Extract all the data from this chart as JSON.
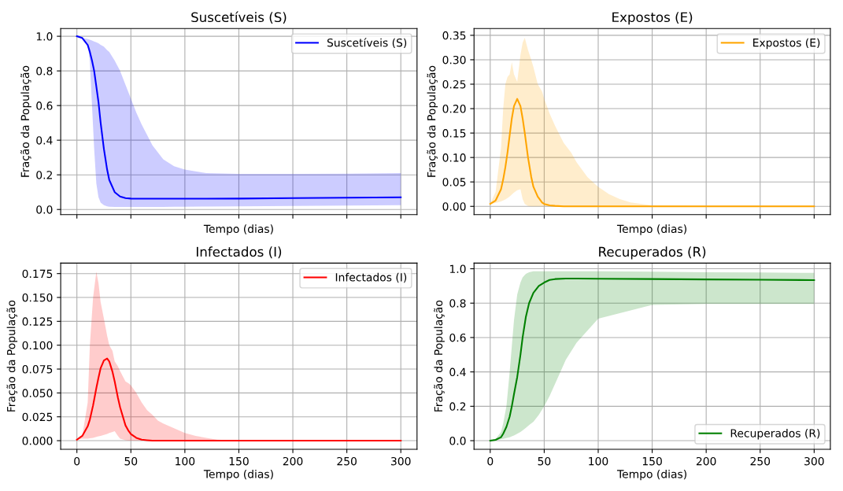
{
  "chart_data": [
    {
      "type": "line",
      "title": "Suscetíveis (S)",
      "xlabel": "Tempo (dias)",
      "ylabel": "Fração da População",
      "xlim": [
        -15,
        315
      ],
      "xticks": [
        0,
        50,
        100,
        150,
        200,
        250,
        300
      ],
      "ylim": [
        -0.03,
        1.045
      ],
      "yticks": [
        {
          "value": 0,
          "label": "0.0"
        },
        {
          "value": 0.2,
          "label": "0.2"
        },
        {
          "value": 0.4,
          "label": "0.4"
        },
        {
          "value": 0.6,
          "label": "0.6"
        },
        {
          "value": 0.8,
          "label": "0.8"
        },
        {
          "value": 1,
          "label": "1.0"
        }
      ],
      "tick_labels": "y",
      "grid": true,
      "legend": "top right",
      "series": [
        {
          "name": "Suscetíveis (S)",
          "color": "#0000ff",
          "x": [
            0,
            5,
            10,
            12,
            14,
            16,
            18,
            20,
            22,
            25,
            28,
            30,
            35,
            40,
            45,
            50,
            55,
            60,
            70,
            80,
            90,
            100,
            120,
            150,
            200,
            250,
            300
          ],
          "values": [
            1.0,
            0.99,
            0.95,
            0.91,
            0.86,
            0.8,
            0.71,
            0.62,
            0.5,
            0.35,
            0.23,
            0.17,
            0.1,
            0.075,
            0.066,
            0.063,
            0.062,
            0.062,
            0.062,
            0.062,
            0.062,
            0.062,
            0.062,
            0.063,
            0.066,
            0.068,
            0.07
          ],
          "upper": [
            1.0,
            0.99,
            0.985,
            0.98,
            0.975,
            0.97,
            0.965,
            0.96,
            0.95,
            0.94,
            0.92,
            0.91,
            0.86,
            0.8,
            0.72,
            0.64,
            0.56,
            0.49,
            0.37,
            0.29,
            0.25,
            0.23,
            0.21,
            0.205,
            0.205,
            0.207,
            0.21
          ],
          "lower": [
            1.0,
            0.99,
            0.96,
            0.85,
            0.6,
            0.35,
            0.15,
            0.07,
            0.04,
            0.025,
            0.018,
            0.016,
            0.015,
            0.015,
            0.015,
            0.015,
            0.015,
            0.015,
            0.015,
            0.015,
            0.016,
            0.016,
            0.017,
            0.018,
            0.02,
            0.022,
            0.025
          ]
        }
      ]
    },
    {
      "type": "line",
      "title": "Expostos (E)",
      "xlabel": "Tempo (dias)",
      "ylabel": "Fração da População",
      "xlim": [
        -15,
        315
      ],
      "xticks": [
        0,
        50,
        100,
        150,
        200,
        250,
        300
      ],
      "ylim": [
        -0.017,
        0.364
      ],
      "yticks": [
        {
          "value": 0,
          "label": "0.00"
        },
        {
          "value": 0.05,
          "label": "0.05"
        },
        {
          "value": 0.1,
          "label": "0.10"
        },
        {
          "value": 0.15,
          "label": "0.15"
        },
        {
          "value": 0.2,
          "label": "0.20"
        },
        {
          "value": 0.25,
          "label": "0.25"
        },
        {
          "value": 0.3,
          "label": "0.30"
        },
        {
          "value": 0.35,
          "label": "0.35"
        }
      ],
      "tick_labels": "y",
      "grid": true,
      "legend": "top right",
      "series": [
        {
          "name": "Expostos (E)",
          "color": "#ffa500",
          "x": [
            0,
            5,
            10,
            12,
            14,
            16,
            18,
            20,
            22,
            25,
            28,
            30,
            32,
            35,
            38,
            40,
            44,
            48,
            50,
            55,
            60,
            68,
            75,
            80,
            90,
            100,
            110,
            120,
            130,
            150,
            200,
            250,
            300
          ],
          "values": [
            0.005,
            0.012,
            0.035,
            0.055,
            0.08,
            0.11,
            0.145,
            0.18,
            0.205,
            0.22,
            0.205,
            0.18,
            0.15,
            0.1,
            0.06,
            0.04,
            0.02,
            0.008,
            0.005,
            0.002,
            0.001,
            0,
            0,
            0,
            0,
            0,
            0,
            0,
            0,
            0,
            0,
            0,
            0
          ],
          "upper": [
            0.005,
            0.03,
            0.12,
            0.2,
            0.25,
            0.265,
            0.27,
            0.295,
            0.27,
            0.255,
            0.31,
            0.335,
            0.345,
            0.32,
            0.3,
            0.285,
            0.25,
            0.235,
            0.22,
            0.19,
            0.165,
            0.13,
            0.11,
            0.09,
            0.06,
            0.04,
            0.025,
            0.015,
            0.008,
            0.002,
            0,
            0,
            0
          ],
          "lower": [
            0.005,
            0.007,
            0.01,
            0.012,
            0.014,
            0.017,
            0.02,
            0.024,
            0.028,
            0.033,
            0.035,
            0.015,
            0.005,
            0.001,
            0,
            0,
            0,
            0,
            0,
            0,
            0,
            0,
            0,
            0,
            0,
            0,
            0,
            0,
            0,
            0,
            0,
            0,
            0
          ]
        }
      ]
    },
    {
      "type": "line",
      "title": "Infectados (I)",
      "xlabel": "Tempo (dias)",
      "ylabel": "Fração da População",
      "xlim": [
        -15,
        315
      ],
      "xticks": [
        0,
        50,
        100,
        150,
        200,
        250,
        300
      ],
      "ylim": [
        -0.009,
        0.186
      ],
      "yticks": [
        {
          "value": 0,
          "label": "0.000"
        },
        {
          "value": 0.025,
          "label": "0.025"
        },
        {
          "value": 0.05,
          "label": "0.050"
        },
        {
          "value": 0.075,
          "label": "0.075"
        },
        {
          "value": 0.1,
          "label": "0.100"
        },
        {
          "value": 0.125,
          "label": "0.125"
        },
        {
          "value": 0.15,
          "label": "0.150"
        },
        {
          "value": 0.175,
          "label": "0.175"
        }
      ],
      "grid": true,
      "legend": "top right",
      "series": [
        {
          "name": "Infectados (I)",
          "color": "#ff0000",
          "x": [
            0,
            5,
            10,
            12,
            15,
            18,
            20,
            22,
            25,
            28,
            30,
            33,
            35,
            38,
            40,
            45,
            48,
            50,
            55,
            60,
            65,
            70,
            75,
            80,
            90,
            100,
            110,
            120,
            130,
            150,
            200,
            250,
            300
          ],
          "values": [
            0.001,
            0.005,
            0.015,
            0.022,
            0.037,
            0.055,
            0.066,
            0.076,
            0.084,
            0.086,
            0.083,
            0.072,
            0.062,
            0.045,
            0.035,
            0.016,
            0.01,
            0.007,
            0.003,
            0.001,
            0.0005,
            0,
            0,
            0,
            0,
            0,
            0,
            0,
            0,
            0,
            0,
            0,
            0
          ],
          "upper": [
            0.001,
            0.005,
            0.04,
            0.1,
            0.15,
            0.177,
            0.165,
            0.145,
            0.128,
            0.11,
            0.1,
            0.094,
            0.083,
            0.078,
            0.073,
            0.062,
            0.06,
            0.058,
            0.05,
            0.04,
            0.032,
            0.027,
            0.021,
            0.018,
            0.013,
            0.008,
            0.005,
            0.003,
            0.001,
            0,
            0,
            0,
            0
          ],
          "lower": [
            0.001,
            0.002,
            0.002,
            0.0025,
            0.003,
            0.004,
            0.0045,
            0.005,
            0.006,
            0.007,
            0.008,
            0.009,
            0.01,
            0.005,
            0.002,
            0.0005,
            0,
            0,
            0,
            0,
            0,
            0,
            0,
            0,
            0,
            0,
            0,
            0,
            0,
            0,
            0,
            0,
            0
          ]
        }
      ]
    },
    {
      "type": "line",
      "title": "Recuperados (R)",
      "xlabel": "Tempo (dias)",
      "ylabel": "Fração da População",
      "xlim": [
        -15,
        315
      ],
      "xticks": [
        0,
        50,
        100,
        150,
        200,
        250,
        300
      ],
      "ylim": [
        -0.05,
        1.033
      ],
      "yticks": [
        {
          "value": 0,
          "label": "0.0"
        },
        {
          "value": 0.2,
          "label": "0.2"
        },
        {
          "value": 0.4,
          "label": "0.4"
        },
        {
          "value": 0.6,
          "label": "0.6"
        },
        {
          "value": 0.8,
          "label": "0.8"
        },
        {
          "value": 1,
          "label": "1.0"
        }
      ],
      "grid": true,
      "legend": "bottom right",
      "series": [
        {
          "name": "Recuperados (R)",
          "color": "#008000",
          "x": [
            0,
            5,
            10,
            12,
            15,
            18,
            20,
            22,
            25,
            28,
            30,
            33,
            36,
            40,
            45,
            50,
            55,
            60,
            70,
            80,
            100,
            150,
            200,
            250,
            300
          ],
          "values": [
            0.0,
            0.005,
            0.02,
            0.04,
            0.08,
            0.14,
            0.2,
            0.27,
            0.37,
            0.5,
            0.6,
            0.72,
            0.8,
            0.86,
            0.9,
            0.92,
            0.935,
            0.94,
            0.943,
            0.943,
            0.942,
            0.94,
            0.938,
            0.936,
            0.934
          ],
          "upper": [
            0.0,
            0.01,
            0.05,
            0.1,
            0.2,
            0.4,
            0.55,
            0.7,
            0.85,
            0.92,
            0.95,
            0.97,
            0.98,
            0.985,
            0.985,
            0.985,
            0.985,
            0.985,
            0.985,
            0.985,
            0.985,
            0.983,
            0.98,
            0.978,
            0.976
          ],
          "lower": [
            0.0,
            0.003,
            0.008,
            0.01,
            0.015,
            0.02,
            0.025,
            0.03,
            0.04,
            0.05,
            0.06,
            0.075,
            0.09,
            0.11,
            0.15,
            0.2,
            0.26,
            0.33,
            0.47,
            0.57,
            0.71,
            0.79,
            0.795,
            0.795,
            0.795
          ]
        }
      ]
    }
  ]
}
